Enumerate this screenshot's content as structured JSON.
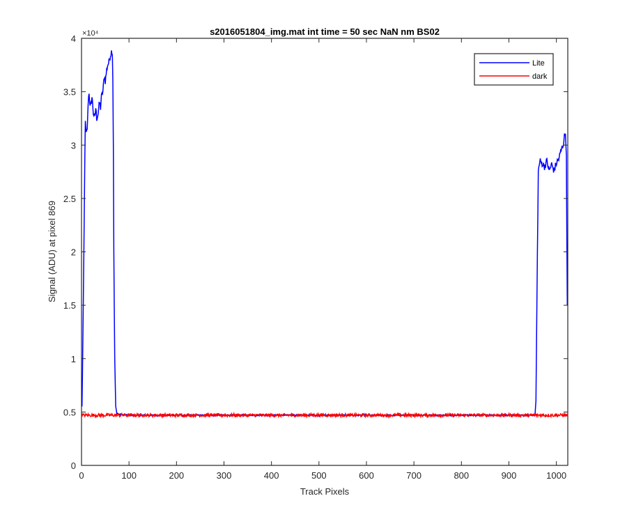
{
  "chart_data": {
    "type": "line",
    "title": "s2016051804_img.mat int time = 50 sec  NaN nm BS02",
    "xlabel": "Track Pixels",
    "ylabel": "Signal (ADU) at pixel 869",
    "xlim": [
      0,
      1024
    ],
    "ylim": [
      0,
      40000
    ],
    "y_exponent_label": "×10⁴",
    "x_ticks": [
      0,
      100,
      200,
      300,
      400,
      500,
      600,
      700,
      800,
      900,
      1000
    ],
    "x_tick_labels": [
      "0",
      "100",
      "200",
      "300",
      "400",
      "500",
      "600",
      "700",
      "800",
      "900",
      "1000"
    ],
    "y_ticks": [
      0,
      5000,
      10000,
      15000,
      20000,
      25000,
      30000,
      35000,
      40000
    ],
    "y_tick_labels": [
      "0",
      "0.5",
      "1",
      "1.5",
      "2",
      "2.5",
      "3",
      "3.5",
      "4"
    ],
    "grid": false,
    "legend_position": "top-right",
    "series": [
      {
        "name": "Lite",
        "color": "#0000ff",
        "points": [
          [
            1,
            5500
          ],
          [
            3,
            12000
          ],
          [
            5,
            20000
          ],
          [
            7,
            29000
          ],
          [
            8,
            32000
          ],
          [
            10,
            31000
          ],
          [
            12,
            31500
          ],
          [
            14,
            34000
          ],
          [
            16,
            35000
          ],
          [
            18,
            33500
          ],
          [
            20,
            33800
          ],
          [
            22,
            34500
          ],
          [
            25,
            33000
          ],
          [
            28,
            32500
          ],
          [
            30,
            33500
          ],
          [
            32,
            32500
          ],
          [
            35,
            33000
          ],
          [
            38,
            34000
          ],
          [
            40,
            33500
          ],
          [
            42,
            34500
          ],
          [
            45,
            35000
          ],
          [
            48,
            36500
          ],
          [
            50,
            36000
          ],
          [
            53,
            37000
          ],
          [
            55,
            37500
          ],
          [
            58,
            37800
          ],
          [
            60,
            38300
          ],
          [
            62,
            38600
          ],
          [
            64,
            38900
          ],
          [
            65,
            38500
          ],
          [
            66,
            36000
          ],
          [
            67,
            30000
          ],
          [
            68,
            20000
          ],
          [
            70,
            10000
          ],
          [
            72,
            5500
          ],
          [
            74,
            4950
          ],
          [
            78,
            4800
          ],
          [
            85,
            4750
          ],
          [
            100,
            4700
          ],
          [
            200,
            4700
          ],
          [
            300,
            4700
          ],
          [
            400,
            4700
          ],
          [
            500,
            4700
          ],
          [
            600,
            4700
          ],
          [
            700,
            4700
          ],
          [
            800,
            4700
          ],
          [
            900,
            4700
          ],
          [
            955,
            4700
          ],
          [
            957,
            6000
          ],
          [
            960,
            20000
          ],
          [
            962,
            27500
          ],
          [
            965,
            28500
          ],
          [
            970,
            28300
          ],
          [
            975,
            28000
          ],
          [
            980,
            28500
          ],
          [
            985,
            27600
          ],
          [
            990,
            28200
          ],
          [
            995,
            27600
          ],
          [
            1000,
            28300
          ],
          [
            1005,
            28700
          ],
          [
            1010,
            29500
          ],
          [
            1014,
            30000
          ],
          [
            1017,
            30800
          ],
          [
            1019,
            31100
          ],
          [
            1021,
            29000
          ],
          [
            1023,
            15000
          ]
        ]
      },
      {
        "name": "dark",
        "color": "#ff0000",
        "mean": 4700,
        "noise": 150,
        "x_range": [
          1,
          1024
        ]
      }
    ]
  }
}
